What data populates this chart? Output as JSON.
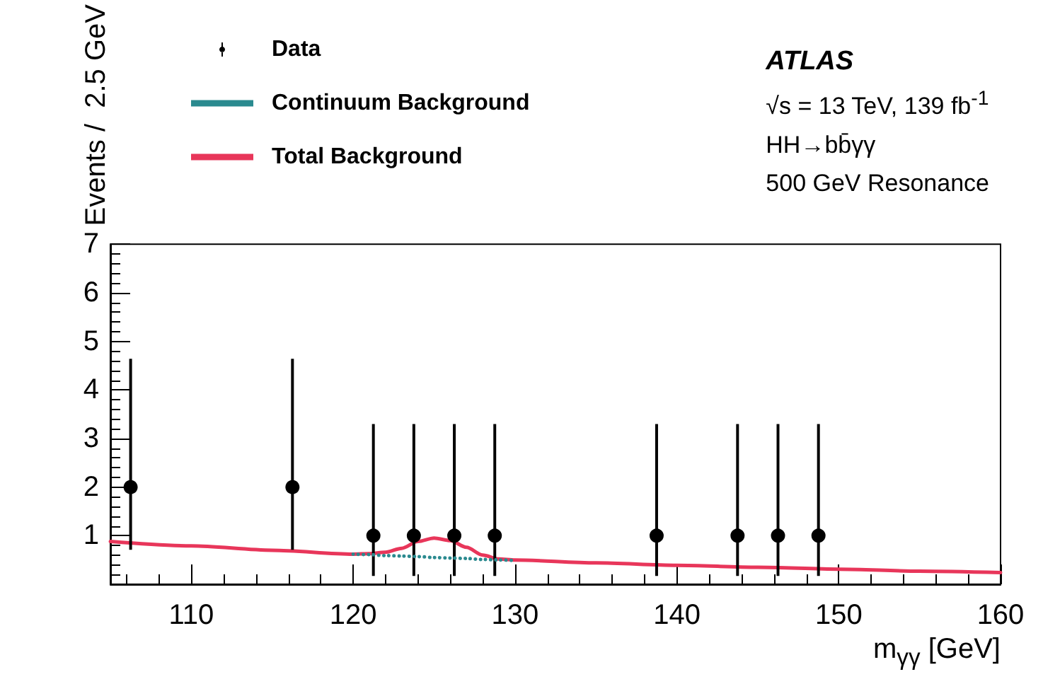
{
  "chart_data": {
    "type": "scatter",
    "xlabel": "m$_{γγ}$ [GeV]",
    "ylabel": "Events /  2.5 GeV",
    "xlim": [
      105,
      160
    ],
    "xticks": [
      110,
      120,
      130,
      140,
      150,
      160
    ],
    "ylim": [
      0,
      7
    ],
    "yticks": [
      1,
      2,
      3,
      4,
      5,
      6,
      7
    ],
    "legend": "top left",
    "grid": false,
    "annotations": [
      "ATLAS",
      "√s = 13 TeV, 139 fb$^{-1}$",
      "HH→bb̄γγ",
      "500 GeV Resonance"
    ],
    "series": [
      {
        "name": "Data",
        "marker": "circle",
        "color": "#000000",
        "x": [
          106.25,
          116.25,
          121.25,
          123.75,
          126.25,
          128.75,
          138.75,
          143.75,
          146.25,
          148.75
        ],
        "values": [
          2,
          2,
          1,
          1,
          1,
          1,
          1,
          1,
          1,
          1
        ],
        "errors": [
          [
            0.71,
            4.64
          ],
          [
            0.71,
            4.64
          ],
          [
            0.17,
            3.3
          ],
          [
            0.17,
            3.3
          ],
          [
            0.17,
            3.3
          ],
          [
            0.17,
            3.3
          ],
          [
            0.17,
            3.3
          ],
          [
            0.17,
            3.3
          ],
          [
            0.17,
            3.3
          ],
          [
            0.17,
            3.3
          ]
        ]
      },
      {
        "name": "Continuum Background",
        "type": "line",
        "line_style": "dotted",
        "marker": "none",
        "color": "#2a8a8f",
        "x": [
          120,
          121,
          122,
          123,
          124,
          125,
          126,
          127,
          128,
          129,
          130
        ],
        "values": [
          0.62,
          0.61,
          0.59,
          0.58,
          0.57,
          0.55,
          0.54,
          0.53,
          0.51,
          0.5,
          0.49
        ]
      },
      {
        "name": "Total Background",
        "type": "line",
        "line_style": "solid",
        "marker": "none",
        "color": "#e8365a",
        "x": [
          105,
          110,
          115,
          120,
          121,
          122,
          123,
          124,
          125,
          126,
          127,
          128,
          129,
          130,
          135,
          140,
          145,
          150,
          155,
          160
        ],
        "values": [
          0.88,
          0.79,
          0.7,
          0.62,
          0.63,
          0.66,
          0.74,
          0.88,
          0.95,
          0.9,
          0.76,
          0.6,
          0.52,
          0.5,
          0.44,
          0.39,
          0.35,
          0.31,
          0.27,
          0.24
        ]
      }
    ]
  }
}
